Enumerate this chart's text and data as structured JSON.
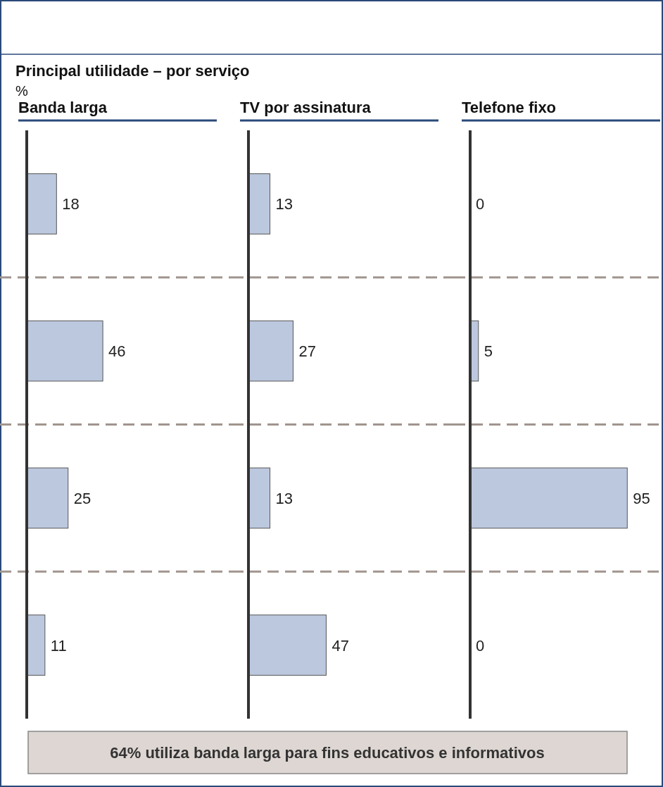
{
  "chart_data": [
    {
      "type": "other",
      "title": "Principal utilidade – por serviço",
      "subtitle": "%",
      "annotations": [
        "64% utiliza banda larga para fins educativos e informativos"
      ]
    },
    {
      "type": "bar",
      "orientation": "horizontal",
      "title": "Banda larga",
      "categories": [
        null,
        null,
        null,
        null
      ],
      "values": [
        18,
        46,
        25,
        11
      ],
      "color": "#bcc8de",
      "data_labels": true,
      "grid": "y"
    },
    {
      "type": "bar",
      "orientation": "horizontal",
      "title": "TV por assinatura",
      "categories": [
        null,
        null,
        null,
        null
      ],
      "values": [
        13,
        27,
        13,
        47
      ],
      "color": "#bcc8de",
      "data_labels": true,
      "grid": "y"
    },
    {
      "type": "bar",
      "orientation": "horizontal",
      "title": "Telefone fixo",
      "categories": [
        null,
        null,
        null,
        null
      ],
      "values": [
        0,
        5,
        95,
        0
      ],
      "color": "#bcc8de",
      "data_labels": true,
      "grid": "y"
    }
  ]
}
